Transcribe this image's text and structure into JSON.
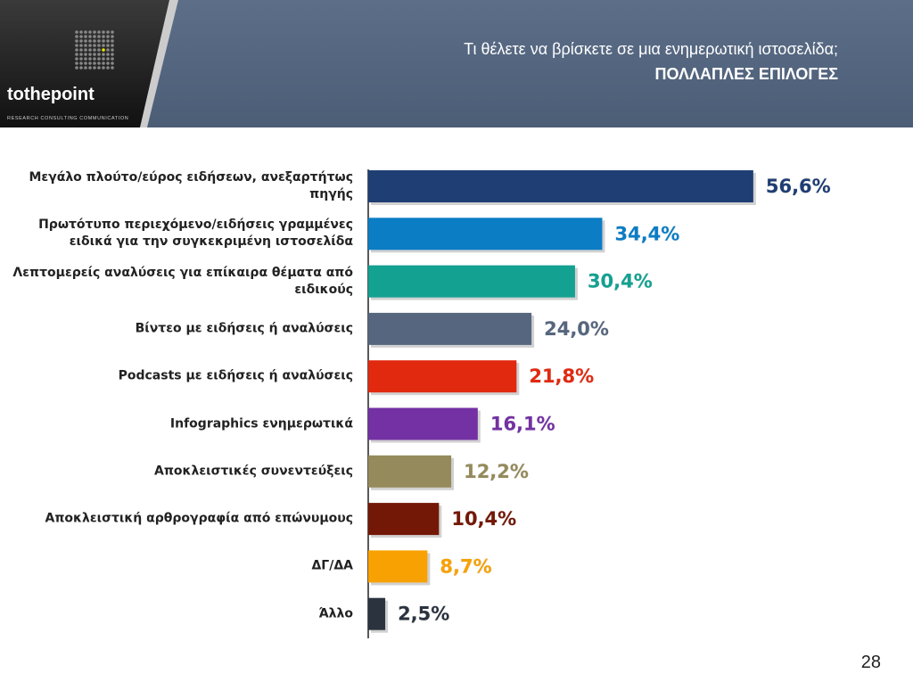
{
  "header": {
    "title": "Τι θέλετε να βρίσκετε σε μια ενημερωτική ιστοσελίδα;",
    "subtitle": "ΠΟΛΛΑΠΛΕΣ ΕΠΙΛΟΓΕΣ",
    "logo": "tothepoint",
    "tagline": "RESEARCH CONSULTING COMMUNICATION"
  },
  "page_number": "28",
  "chart_data": {
    "type": "bar",
    "orientation": "horizontal",
    "categories": [
      "Μεγάλο πλούτο/εύρος ειδήσεων, ανεξαρτήτως πηγής",
      "Πρωτότυπο περιεχόμενο/ειδήσεις γραμμένες ειδικά για την συγκεκριμένη ιστοσελίδα",
      "Λεπτομερείς αναλύσεις για επίκαιρα θέματα από ειδικούς",
      "Βίντεο με ειδήσεις ή αναλύσεις",
      "Podcasts με ειδήσεις ή αναλύσεις",
      "Infographics ενημερωτικά",
      "Αποκλειστικές συνεντεύξεις",
      "Αποκλειστική αρθρογραφία από επώνυμους",
      "ΔΓ/ΔΑ",
      "Άλλο"
    ],
    "values": [
      56.6,
      34.4,
      30.4,
      24.0,
      21.8,
      16.1,
      12.2,
      10.4,
      8.7,
      2.5
    ],
    "value_labels": [
      "56,6%",
      "34,4%",
      "30,4%",
      "24,0%",
      "21,8%",
      "16,1%",
      "12,2%",
      "10,4%",
      "8,7%",
      "2,5%"
    ],
    "colors": [
      "#1f3e73",
      "#0b7dc5",
      "#13a191",
      "#56667e",
      "#e1290f",
      "#7331a3",
      "#958a5b",
      "#731807",
      "#f8a102",
      "#2b333f"
    ]
  }
}
